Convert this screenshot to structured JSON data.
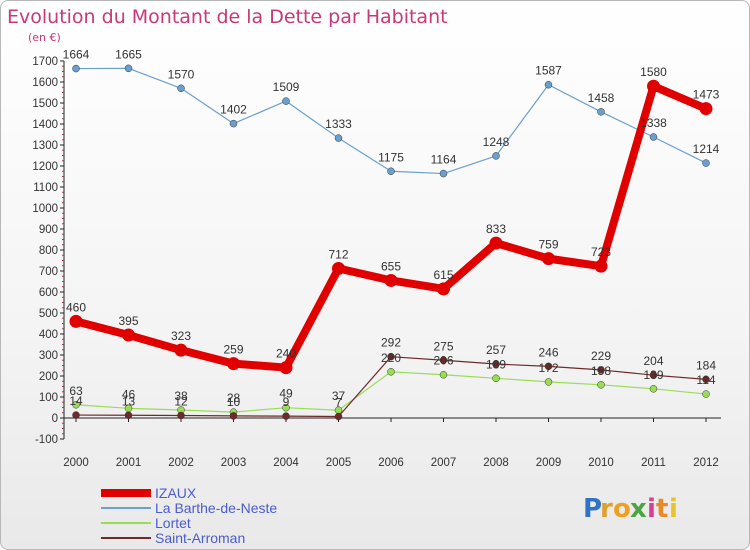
{
  "chart_data": {
    "type": "line",
    "title": "Evolution du Montant de la Dette par Habitant",
    "subtitle": "(en €)",
    "xlabel": "",
    "ylabel": "",
    "x": [
      "2000",
      "2001",
      "2002",
      "2003",
      "2004",
      "2005",
      "2006",
      "2007",
      "2008",
      "2009",
      "2010",
      "2011",
      "2012"
    ],
    "ylim": [
      -100,
      1700
    ],
    "yticks": [
      -100,
      0,
      100,
      200,
      300,
      400,
      500,
      600,
      700,
      800,
      900,
      1000,
      1100,
      1200,
      1300,
      1400,
      1500,
      1600,
      1700
    ],
    "grid": false,
    "legend_position": "bottom-left",
    "series": [
      {
        "name": "IZAUX",
        "color": "#e00000",
        "values": [
          460,
          395,
          323,
          259,
          240,
          712,
          655,
          615,
          833,
          759,
          723,
          1580,
          1473
        ],
        "labels": [
          "460",
          "395",
          "323",
          "259",
          "240",
          "712",
          "655",
          "615",
          "833",
          "759",
          "723",
          "1580",
          "1473"
        ]
      },
      {
        "name": "La Barthe-de-Neste",
        "color": "#6a9fd0",
        "values": [
          1664,
          1665,
          1570,
          1402,
          1509,
          1333,
          1175,
          1164,
          1248,
          1587,
          1458,
          1338,
          1214
        ],
        "labels": [
          "1664",
          "1665",
          "1570",
          "1402",
          "1509",
          "1333",
          "1175",
          "1164",
          "1248",
          "1587",
          "1458",
          "1338",
          "1214"
        ]
      },
      {
        "name": "Lortet",
        "color": "#99dd55",
        "values": [
          63,
          46,
          38,
          28,
          49,
          37,
          220,
          206,
          189,
          172,
          158,
          139,
          114
        ],
        "labels": [
          "63",
          "46",
          "38",
          "28",
          "49",
          "37",
          "220",
          "206",
          "189",
          "172",
          "158",
          "139",
          "114"
        ]
      },
      {
        "name": "Saint-Arroman",
        "color": "#6e2a2a",
        "values": [
          14,
          13,
          12,
          10,
          9,
          7,
          292,
          275,
          257,
          246,
          229,
          204,
          184
        ],
        "labels": [
          "14",
          "13",
          "12",
          "10",
          "9",
          "7",
          "292",
          "275",
          "257",
          "246",
          "229",
          "204",
          "184"
        ]
      }
    ]
  },
  "logo": {
    "text": "Proxiti",
    "letters": [
      "P",
      "r",
      "o",
      "x",
      "i",
      "t",
      "i"
    ],
    "colors": [
      "#2f73c6",
      "#e0a030",
      "#f0a020",
      "#49a642",
      "#d64090",
      "#e88a2a",
      "#e8c32a"
    ]
  }
}
